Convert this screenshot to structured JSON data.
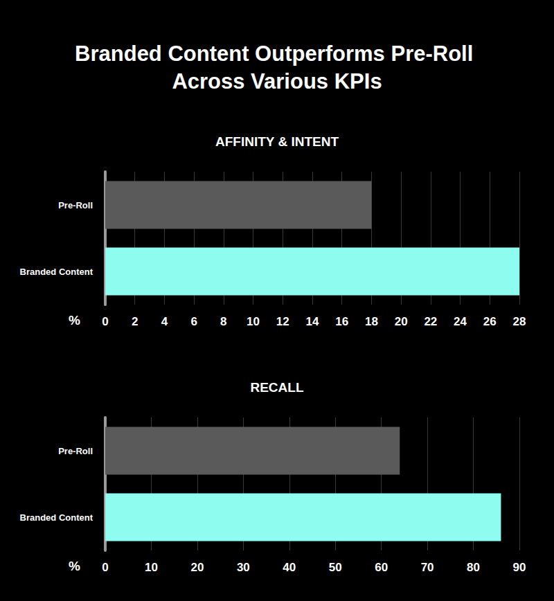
{
  "title": "Branded Content Outperforms Pre-Roll Across Various KPIs",
  "chart_data": [
    {
      "type": "bar",
      "orientation": "horizontal",
      "title": "AFFINITY & INTENT",
      "xlabel": "%",
      "categories": [
        "Pre-Roll",
        "Branded Content"
      ],
      "values": [
        18,
        28
      ],
      "colors": [
        "#5a5a5a",
        "#8efcee"
      ],
      "xlim": [
        0,
        28
      ],
      "xticks": [
        0,
        2,
        4,
        6,
        8,
        10,
        12,
        14,
        16,
        18,
        20,
        22,
        24,
        26,
        28
      ],
      "grid": true
    },
    {
      "type": "bar",
      "orientation": "horizontal",
      "title": "RECALL",
      "xlabel": "%",
      "categories": [
        "Pre-Roll",
        "Branded Content"
      ],
      "values": [
        64,
        86
      ],
      "colors": [
        "#5a5a5a",
        "#8efcee"
      ],
      "xlim": [
        0,
        90
      ],
      "xticks": [
        0,
        10,
        20,
        30,
        40,
        50,
        60,
        70,
        80,
        90
      ],
      "grid": true
    }
  ]
}
